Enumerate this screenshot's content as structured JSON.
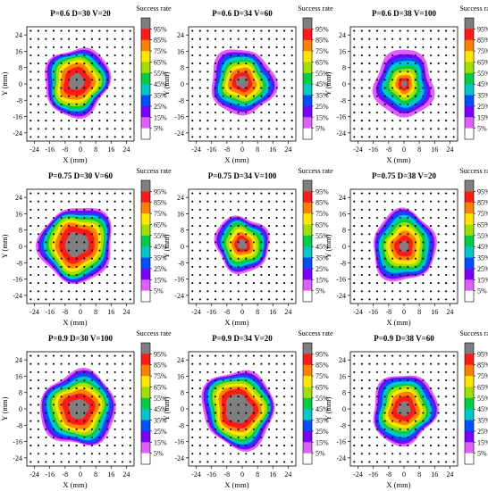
{
  "figure": {
    "colorbar_label": "Success rate",
    "xlabel": "X (mm)",
    "ylabel": "Y (mm)"
  },
  "colorbar": {
    "labels": [
      "95%",
      "85%",
      "75%",
      "65%",
      "55%",
      "45%",
      "35%",
      "25%",
      "15%",
      "5%"
    ],
    "colors": [
      "#7f7f7f",
      "#ff1a1a",
      "#ff7f00",
      "#ffe600",
      "#9fe000",
      "#00cc44",
      "#00c8c8",
      "#0050ff",
      "#7a00ff",
      "#e060ff",
      "#ffffff"
    ]
  },
  "chart_data": [
    {
      "type": "heatmap",
      "title": "P=0.6 D=30 V=20",
      "xlabel": "X (mm)",
      "ylabel": "Y (mm)",
      "xticks": [
        -24,
        -16,
        -8,
        0,
        8,
        16,
        24
      ],
      "yticks": [
        -24,
        -16,
        -8,
        0,
        8,
        16,
        24
      ],
      "xlim": [
        -28,
        28
      ],
      "ylim": [
        -28,
        28
      ],
      "colorbar_label": "Success rate",
      "peak_center": [
        -2,
        1
      ],
      "radius_mm": {
        "r95": 4,
        "r85": 7,
        "r75": 9,
        "r65": 10.5,
        "r55": 12,
        "r45": 13,
        "r35": 14,
        "r25": 15,
        "r15": 16,
        "r5": 17
      }
    },
    {
      "type": "heatmap",
      "title": "P=0.6 D=34 V=60",
      "xlabel": "X (mm)",
      "ylabel": "Y (mm)",
      "xticks": [
        -24,
        -16,
        -8,
        0,
        8,
        16,
        24
      ],
      "yticks": [
        -24,
        -16,
        -8,
        0,
        8,
        16,
        24
      ],
      "xlim": [
        -28,
        28
      ],
      "ylim": [
        -28,
        28
      ],
      "colorbar_label": "Success rate",
      "peak_center": [
        0,
        1
      ],
      "radius_mm": {
        "r95": 3,
        "r85": 5,
        "r75": 7,
        "r65": 8.5,
        "r55": 10,
        "r45": 11,
        "r35": 12.5,
        "r25": 14,
        "r15": 15,
        "r5": 16.5
      }
    },
    {
      "type": "heatmap",
      "title": "P=0.6 D=38 V=100",
      "xlabel": "X (mm)",
      "ylabel": "Y (mm)",
      "xticks": [
        -24,
        -16,
        -8,
        0,
        8,
        16,
        24
      ],
      "yticks": [
        -24,
        -16,
        -8,
        0,
        8,
        16,
        24
      ],
      "xlim": [
        -28,
        28
      ],
      "ylim": [
        -28,
        28
      ],
      "colorbar_label": "Success rate",
      "peak_center": [
        0,
        0
      ],
      "radius_mm": {
        "r95": 1.5,
        "r85": 3,
        "r75": 4.5,
        "r65": 6,
        "r55": 7.5,
        "r45": 9,
        "r35": 11,
        "r25": 12.5,
        "r15": 14,
        "r5": 16
      }
    },
    {
      "type": "heatmap",
      "title": "P=0.75 D=30 V=60",
      "xlabel": "X (mm)",
      "ylabel": "Y (mm)",
      "xticks": [
        -24,
        -16,
        -8,
        0,
        8,
        16,
        24
      ],
      "yticks": [
        -24,
        -16,
        -8,
        0,
        8,
        16,
        24
      ],
      "xlim": [
        -28,
        28
      ],
      "ylim": [
        -28,
        28
      ],
      "colorbar_label": "Success rate",
      "peak_center": [
        -2,
        1
      ],
      "radius_mm": {
        "r95": 6,
        "r85": 9,
        "r75": 11,
        "r65": 12.5,
        "r55": 14,
        "r45": 15,
        "r35": 16,
        "r25": 17,
        "r15": 18,
        "r5": 19
      }
    },
    {
      "type": "heatmap",
      "title": "P=0.75 D=34 V=100",
      "xlabel": "X (mm)",
      "ylabel": "Y (mm)",
      "xticks": [
        -24,
        -16,
        -8,
        0,
        8,
        16,
        24
      ],
      "yticks": [
        -24,
        -16,
        -8,
        0,
        8,
        16,
        24
      ],
      "xlim": [
        -28,
        28
      ],
      "ylim": [
        -28,
        28
      ],
      "colorbar_label": "Success rate",
      "peak_center": [
        0,
        1
      ],
      "radius_mm": {
        "r95": 2.5,
        "r85": 4,
        "r75": 5.5,
        "r65": 7,
        "r55": 8.5,
        "r45": 10,
        "r35": 11,
        "r25": 12,
        "r15": 13,
        "r5": 14
      }
    },
    {
      "type": "heatmap",
      "title": "P=0.75 D=38 V=20",
      "xlabel": "X (mm)",
      "ylabel": "Y (mm)",
      "xticks": [
        -24,
        -16,
        -8,
        0,
        8,
        16,
        24
      ],
      "yticks": [
        -24,
        -16,
        -8,
        0,
        8,
        16,
        24
      ],
      "xlim": [
        -28,
        28
      ],
      "ylim": [
        -28,
        28
      ],
      "colorbar_label": "Success rate",
      "peak_center": [
        0,
        0
      ],
      "radius_mm": {
        "r95": 2.5,
        "r85": 5,
        "r75": 7,
        "r65": 9,
        "r55": 10.5,
        "r45": 12,
        "r35": 13.5,
        "r25": 15,
        "r15": 16,
        "r5": 17
      }
    },
    {
      "type": "heatmap",
      "title": "P=0.9 D=30 V=100",
      "xlabel": "X (mm)",
      "ylabel": "Y (mm)",
      "xticks": [
        -24,
        -16,
        -8,
        0,
        8,
        16,
        24
      ],
      "yticks": [
        -24,
        -16,
        -8,
        0,
        8,
        16,
        24
      ],
      "xlim": [
        -28,
        28
      ],
      "ylim": [
        -28,
        28
      ],
      "colorbar_label": "Success rate",
      "peak_center": [
        -1,
        0
      ],
      "radius_mm": {
        "r95": 5,
        "r85": 8,
        "r75": 10,
        "r65": 11.5,
        "r55": 13,
        "r45": 14,
        "r35": 15.5,
        "r25": 17,
        "r15": 18,
        "r5": 19
      }
    },
    {
      "type": "heatmap",
      "title": "P=0.9 D=34 V=20",
      "xlabel": "X (mm)",
      "ylabel": "Y (mm)",
      "xticks": [
        -24,
        -16,
        -8,
        0,
        8,
        16,
        24
      ],
      "yticks": [
        -24,
        -16,
        -8,
        0,
        8,
        16,
        24
      ],
      "xlim": [
        -28,
        28
      ],
      "ylim": [
        -28,
        28
      ],
      "colorbar_label": "Success rate",
      "peak_center": [
        -2,
        0
      ],
      "radius_mm": {
        "r95": 7,
        "r85": 9.5,
        "r75": 11,
        "r65": 12.5,
        "r55": 14,
        "r45": 15,
        "r35": 16,
        "r25": 17,
        "r15": 18,
        "r5": 19
      }
    },
    {
      "type": "heatmap",
      "title": "P=0.9 D=38 V=60",
      "xlabel": "X (mm)",
      "ylabel": "Y (mm)",
      "xticks": [
        -24,
        -16,
        -8,
        0,
        8,
        16,
        24
      ],
      "yticks": [
        -24,
        -16,
        -8,
        0,
        8,
        16,
        24
      ],
      "xlim": [
        -28,
        28
      ],
      "ylim": [
        -28,
        28
      ],
      "colorbar_label": "Success rate",
      "peak_center": [
        0,
        0
      ],
      "radius_mm": {
        "r95": 3.5,
        "r85": 6,
        "r75": 8,
        "r65": 9.5,
        "r55": 11,
        "r45": 12,
        "r35": 13.5,
        "r25": 15,
        "r15": 16,
        "r5": 17
      }
    }
  ]
}
